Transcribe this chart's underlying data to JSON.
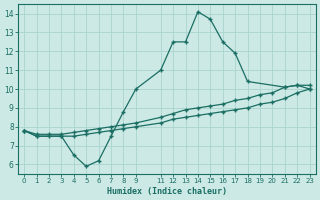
{
  "xlabel": "Humidex (Indice chaleur)",
  "xlim": [
    -0.5,
    23.5
  ],
  "ylim": [
    5.5,
    14.5
  ],
  "xticks": [
    0,
    1,
    2,
    3,
    4,
    5,
    6,
    7,
    8,
    9,
    11,
    12,
    13,
    14,
    15,
    16,
    17,
    18,
    19,
    20,
    21,
    22,
    23
  ],
  "yticks": [
    6,
    7,
    8,
    9,
    10,
    11,
    12,
    13,
    14
  ],
  "bg_color": "#cce9e5",
  "line_color": "#1a6e63",
  "grid_color": "#aad4cf",
  "lines": [
    {
      "x": [
        0,
        1,
        2,
        3,
        4,
        5,
        6,
        7,
        8,
        9,
        11,
        12,
        13,
        14,
        15,
        16,
        17,
        18,
        19,
        20,
        21,
        22,
        23
      ],
      "y": [
        7.8,
        7.5,
        7.5,
        7.5,
        7.5,
        7.6,
        7.7,
        7.8,
        7.9,
        8.0,
        8.2,
        8.4,
        8.5,
        8.6,
        8.7,
        8.8,
        8.9,
        9.0,
        9.2,
        9.3,
        9.5,
        9.8,
        10.0
      ]
    },
    {
      "x": [
        0,
        1,
        2,
        3,
        4,
        5,
        6,
        7,
        8,
        9,
        11,
        12,
        13,
        14,
        15,
        16,
        17,
        18,
        19,
        20,
        21,
        22,
        23
      ],
      "y": [
        7.8,
        7.6,
        7.6,
        7.6,
        7.7,
        7.8,
        7.9,
        8.0,
        8.1,
        8.2,
        8.5,
        8.7,
        8.9,
        9.0,
        9.1,
        9.2,
        9.4,
        9.5,
        9.7,
        9.8,
        10.1,
        10.2,
        10.2
      ]
    },
    {
      "x": [
        0,
        1,
        3,
        4,
        5,
        6,
        7,
        8,
        9,
        11,
        12,
        13,
        14,
        15,
        16,
        17,
        18,
        21,
        22,
        23
      ],
      "y": [
        7.8,
        7.5,
        7.5,
        6.5,
        5.9,
        6.2,
        7.5,
        8.8,
        10.0,
        11.0,
        12.5,
        12.5,
        14.1,
        13.7,
        12.5,
        11.9,
        10.4,
        10.1,
        10.2,
        10.0
      ]
    }
  ]
}
